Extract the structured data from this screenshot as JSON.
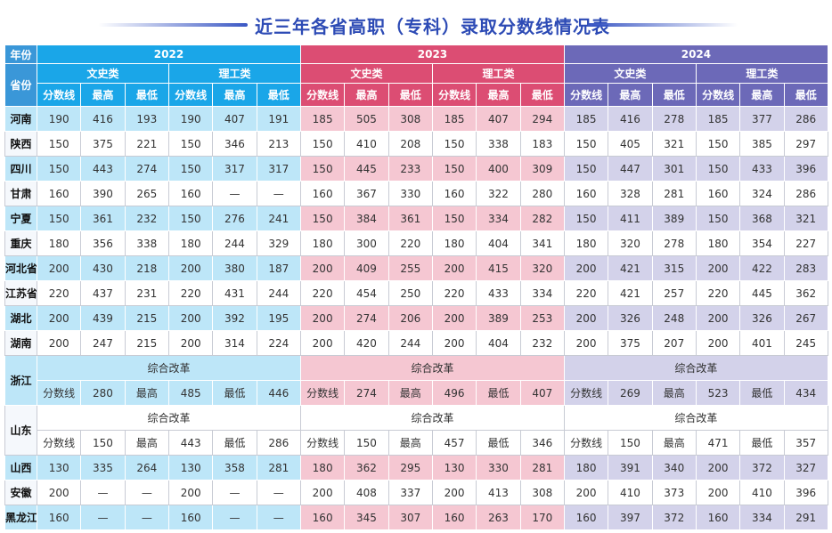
{
  "title": "近三年各省高职（专科）录取分数线情况表",
  "header": {
    "corner_year": "年份",
    "corner_province": "省份",
    "years": [
      "2022",
      "2023",
      "2024"
    ],
    "categories": [
      "文史类",
      "理工类"
    ],
    "subcols": [
      "分数线",
      "最高",
      "最低"
    ]
  },
  "rows": [
    {
      "province": "河南",
      "tint": true,
      "values": [
        "190",
        "416",
        "193",
        "190",
        "407",
        "191",
        "185",
        "505",
        "308",
        "185",
        "407",
        "294",
        "185",
        "416",
        "278",
        "185",
        "377",
        "286"
      ]
    },
    {
      "province": "陕西",
      "tint": false,
      "values": [
        "150",
        "375",
        "221",
        "150",
        "346",
        "213",
        "150",
        "410",
        "208",
        "150",
        "338",
        "183",
        "150",
        "405",
        "321",
        "150",
        "385",
        "297"
      ]
    },
    {
      "province": "四川",
      "tint": true,
      "values": [
        "150",
        "443",
        "274",
        "150",
        "317",
        "317",
        "150",
        "445",
        "233",
        "150",
        "400",
        "309",
        "150",
        "447",
        "301",
        "150",
        "433",
        "396"
      ]
    },
    {
      "province": "甘肃",
      "tint": false,
      "values": [
        "160",
        "390",
        "265",
        "160",
        "—",
        "—",
        "160",
        "367",
        "330",
        "160",
        "322",
        "280",
        "160",
        "328",
        "281",
        "160",
        "324",
        "286"
      ]
    },
    {
      "province": "宁夏",
      "tint": true,
      "values": [
        "150",
        "361",
        "232",
        "150",
        "276",
        "241",
        "150",
        "384",
        "361",
        "150",
        "334",
        "282",
        "150",
        "411",
        "389",
        "150",
        "368",
        "321"
      ]
    },
    {
      "province": "重庆",
      "tint": false,
      "values": [
        "180",
        "356",
        "338",
        "180",
        "244",
        "329",
        "180",
        "300",
        "220",
        "180",
        "404",
        "341",
        "180",
        "320",
        "278",
        "180",
        "354",
        "227"
      ]
    },
    {
      "province": "河北省",
      "tint": true,
      "values": [
        "200",
        "430",
        "218",
        "200",
        "380",
        "187",
        "200",
        "409",
        "255",
        "200",
        "415",
        "320",
        "200",
        "421",
        "315",
        "200",
        "422",
        "283"
      ]
    },
    {
      "province": "江苏省",
      "tint": false,
      "values": [
        "220",
        "437",
        "231",
        "220",
        "431",
        "244",
        "220",
        "454",
        "250",
        "220",
        "433",
        "334",
        "220",
        "421",
        "257",
        "220",
        "445",
        "362"
      ]
    },
    {
      "province": "湖北",
      "tint": true,
      "values": [
        "200",
        "439",
        "215",
        "200",
        "392",
        "195",
        "200",
        "274",
        "206",
        "200",
        "389",
        "253",
        "200",
        "326",
        "248",
        "200",
        "326",
        "267"
      ]
    },
    {
      "province": "湖南",
      "tint": false,
      "values": [
        "200",
        "247",
        "215",
        "200",
        "314",
        "224",
        "200",
        "420",
        "244",
        "200",
        "404",
        "232",
        "200",
        "375",
        "207",
        "200",
        "401",
        "245"
      ]
    }
  ],
  "zhejiang": {
    "province": "浙江",
    "reform_label": "综合改革",
    "values": [
      [
        "分数线",
        "280",
        "最高",
        "485",
        "最低",
        "446"
      ],
      [
        "分数线",
        "274",
        "最高",
        "496",
        "最低",
        "407"
      ],
      [
        "分数线",
        "269",
        "最高",
        "523",
        "最低",
        "434"
      ]
    ]
  },
  "shandong": {
    "province": "山东",
    "reform_label": "综合改革",
    "values": [
      [
        "分数线",
        "150",
        "最高",
        "443",
        "最低",
        "286"
      ],
      [
        "分数线",
        "150",
        "最高",
        "457",
        "最低",
        "346"
      ],
      [
        "分数线",
        "150",
        "最高",
        "471",
        "最低",
        "357"
      ]
    ]
  },
  "rows_after": [
    {
      "province": "山西",
      "tint": true,
      "values": [
        "130",
        "335",
        "264",
        "130",
        "358",
        "281",
        "180",
        "362",
        "295",
        "130",
        "330",
        "281",
        "180",
        "391",
        "340",
        "200",
        "372",
        "327"
      ]
    },
    {
      "province": "安徽",
      "tint": false,
      "values": [
        "200",
        "—",
        "—",
        "200",
        "—",
        "—",
        "200",
        "408",
        "337",
        "200",
        "413",
        "308",
        "200",
        "410",
        "373",
        "200",
        "410",
        "396"
      ]
    },
    {
      "province": "黑龙江",
      "tint": true,
      "values": [
        "160",
        "—",
        "—",
        "160",
        "—",
        "—",
        "160",
        "345",
        "307",
        "160",
        "263",
        "170",
        "160",
        "397",
        "372",
        "160",
        "334",
        "291"
      ]
    }
  ],
  "colors": {
    "title": "#2d4bb5",
    "year_2022": "#1aa6e8",
    "year_2023": "#dc4d73",
    "year_2024": "#6c69b8",
    "tint_2022": "#bde6f8",
    "tint_2023": "#f5c7d2",
    "tint_2024": "#d3d2ea"
  }
}
